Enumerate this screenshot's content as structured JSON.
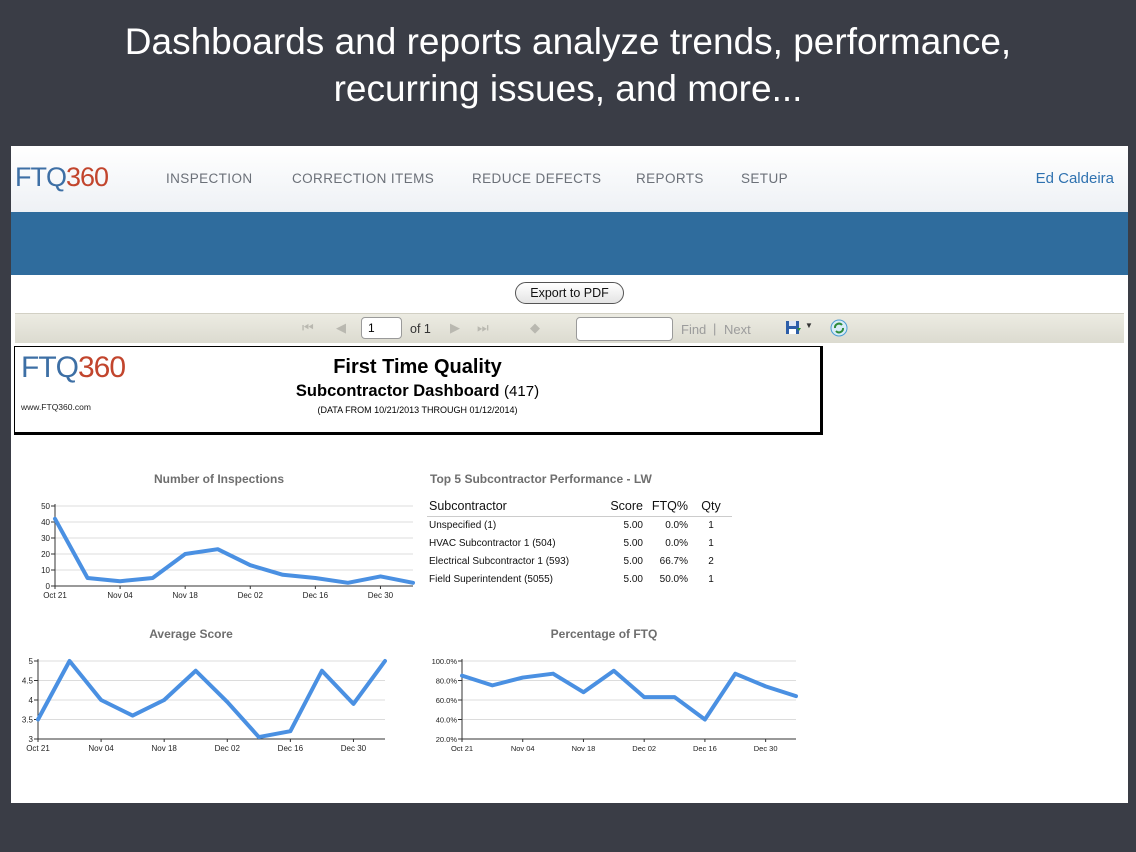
{
  "slide": {
    "title_line1": "Dashboards and reports analyze trends, performance,",
    "title_line2": "recurring issues, and more..."
  },
  "app": {
    "logo": {
      "ft": "FT",
      "q": "Q",
      "num": "360"
    },
    "nav": [
      "INSPECTION",
      "CORRECTION ITEMS",
      "REDUCE DEFECTS",
      "REPORTS",
      "SETUP"
    ],
    "user": "Ed Caldeira",
    "colors": {
      "band": "#2f6c9d",
      "line": "#4a90e2",
      "logo_red": "#c2452d"
    }
  },
  "viewer": {
    "export_label": "Export to PDF",
    "page_value": "1",
    "of_label": "of 1",
    "find_label": "Find",
    "separator": "|",
    "next_label": "Next",
    "icons": [
      "first-page-icon",
      "prev-page-icon",
      "next-page-icon",
      "last-page-icon",
      "back-icon",
      "save-icon",
      "refresh-icon"
    ]
  },
  "report": {
    "url": "www.FTQ360.com",
    "title": "First Time Quality",
    "subtitle": "Subcontractor Dashboard",
    "count": "(417)",
    "range": "(DATA FROM 10/21/2013  THROUGH 01/12/2014)"
  },
  "table": {
    "title": "Top  5 Subcontractor Performance - LW",
    "headers": [
      "Subcontractor",
      "Score",
      "FTQ%",
      "Qty"
    ],
    "rows": [
      [
        "Unspecified (1)",
        "5.00",
        "0.0%",
        "1"
      ],
      [
        "HVAC Subcontractor 1 (504)",
        "5.00",
        "0.0%",
        "1"
      ],
      [
        "Electrical Subcontractor 1 (593)",
        "5.00",
        "66.7%",
        "2"
      ],
      [
        "Field Superintendent (5055)",
        "5.00",
        "50.0%",
        "1"
      ]
    ]
  },
  "chart_data": [
    {
      "type": "line",
      "title": "Number of Inspections",
      "x_ticks": [
        "Oct 21",
        "Nov 04",
        "Nov 18",
        "Dec 02",
        "Dec 16",
        "Dec 30"
      ],
      "y_ticks": [
        "0",
        "10",
        "20",
        "30",
        "40",
        "50"
      ],
      "ylim": [
        0,
        50
      ],
      "values": [
        42,
        5,
        3,
        5,
        20,
        23,
        13,
        7,
        5,
        2,
        6,
        2
      ]
    },
    {
      "type": "line",
      "title": "Average Score",
      "x_ticks": [
        "Oct 21",
        "Nov 04",
        "Nov 18",
        "Dec 02",
        "Dec 16",
        "Dec 30"
      ],
      "y_ticks": [
        "3",
        "3.5",
        "4",
        "4.5",
        "5"
      ],
      "ylim": [
        3,
        5
      ],
      "values": [
        3.5,
        5.0,
        4.0,
        3.6,
        4.0,
        4.75,
        3.95,
        3.05,
        3.2,
        4.75,
        3.9,
        5.0
      ]
    },
    {
      "type": "line",
      "title": "Percentage of FTQ",
      "x_ticks": [
        "Oct 21",
        "Nov 04",
        "Nov 18",
        "Dec 02",
        "Dec 16",
        "Dec 30"
      ],
      "y_ticks": [
        "20.0%",
        "40.0%",
        "60.0%",
        "80.0%",
        "100.0%"
      ],
      "ylim": [
        20,
        100
      ],
      "values": [
        85,
        75,
        83,
        87,
        68,
        90,
        63,
        63,
        40,
        87,
        74,
        64
      ]
    }
  ]
}
